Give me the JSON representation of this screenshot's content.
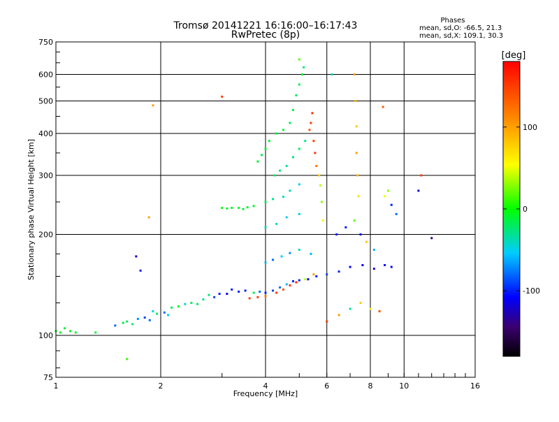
{
  "figure": {
    "title": "Tromsø 20141221 16:16:00–16:17:43",
    "subtitle": "RwPretec (8p)",
    "stats": {
      "heading": "Phases",
      "line_o": "mean, sd,O: -66.5, 21.3",
      "line_x": "mean, sd,X: 109.1, 30.3"
    },
    "colorbar": {
      "label": "[deg]",
      "ticks": [
        {
          "value": 100,
          "label": "100"
        },
        {
          "value": 0,
          "label": "0"
        },
        {
          "value": -100,
          "label": "-100"
        }
      ],
      "min": -180,
      "max": 180
    }
  },
  "chart_data": {
    "type": "scatter",
    "title": "Tromsø 20141221 16:16:00–16:17:43",
    "subtitle": "RwPretec (8p)",
    "xlabel": "Frequency [MHz]",
    "ylabel": "Stationary phase Virtual Height [km]",
    "x_scale": "log",
    "y_scale": "log",
    "xlim": [
      1,
      16
    ],
    "ylim": [
      75,
      750
    ],
    "xticks": [
      {
        "value": 1,
        "label": "1"
      },
      {
        "value": 2,
        "label": "2"
      },
      {
        "value": 4,
        "label": "4"
      },
      {
        "value": 6,
        "label": "6"
      },
      {
        "value": 8,
        "label": "8"
      },
      {
        "value": 10,
        "label": "10"
      },
      {
        "value": 16,
        "label": "16"
      }
    ],
    "yticks": [
      {
        "value": 75,
        "label": "75"
      },
      {
        "value": 100,
        "label": "100"
      },
      {
        "value": 200,
        "label": "200"
      },
      {
        "value": 300,
        "label": "300"
      },
      {
        "value": 400,
        "label": "400"
      },
      {
        "value": 500,
        "label": "500"
      },
      {
        "value": 600,
        "label": "600"
      },
      {
        "value": 750,
        "label": "750"
      }
    ],
    "grid": true,
    "colorbar": {
      "label": "[deg]",
      "range": [
        -180,
        180
      ]
    },
    "series": [
      {
        "points": [
          [
            1.0,
            103,
            -10
          ],
          [
            1.03,
            102,
            -10
          ],
          [
            1.06,
            105,
            -10
          ],
          [
            1.1,
            103,
            -10
          ],
          [
            1.14,
            102,
            -10
          ],
          [
            1.3,
            102,
            -10
          ],
          [
            1.48,
            107,
            -80
          ],
          [
            1.56,
            109,
            -15
          ],
          [
            1.6,
            110,
            -20
          ],
          [
            1.66,
            108,
            -20
          ],
          [
            1.72,
            112,
            -70
          ],
          [
            1.8,
            113,
            -90
          ],
          [
            1.86,
            111,
            -80
          ],
          [
            1.9,
            118,
            -50
          ],
          [
            1.95,
            116,
            -20
          ],
          [
            2.05,
            117,
            -80
          ],
          [
            2.1,
            115,
            -50
          ],
          [
            2.15,
            121,
            -20
          ],
          [
            2.25,
            122,
            -10
          ],
          [
            2.35,
            124,
            -40
          ],
          [
            2.45,
            125,
            -20
          ],
          [
            2.55,
            124,
            -20
          ],
          [
            2.65,
            128,
            -30
          ],
          [
            2.75,
            132,
            -25
          ],
          [
            2.85,
            130,
            -90
          ],
          [
            2.95,
            133,
            -100
          ],
          [
            3.1,
            133,
            -110
          ],
          [
            3.2,
            137,
            -100
          ],
          [
            3.35,
            135,
            -100
          ],
          [
            3.5,
            136,
            -100
          ],
          [
            3.7,
            134,
            -20
          ],
          [
            3.85,
            135,
            -80
          ],
          [
            4.0,
            134,
            -100
          ],
          [
            4.2,
            136,
            -90
          ],
          [
            4.4,
            139,
            -80
          ],
          [
            4.6,
            142,
            -60
          ],
          [
            4.8,
            145,
            -100
          ],
          [
            5.0,
            146,
            -100
          ],
          [
            5.3,
            147,
            -110
          ],
          [
            5.6,
            150,
            -100
          ],
          [
            6.0,
            152,
            -90
          ],
          [
            6.5,
            155,
            -100
          ],
          [
            7.0,
            160,
            -110
          ],
          [
            7.6,
            162,
            -110
          ],
          [
            8.2,
            158,
            -120
          ],
          [
            8.8,
            162,
            -110
          ],
          [
            9.2,
            160,
            -110
          ],
          [
            3.6,
            129,
            150
          ],
          [
            3.8,
            130,
            150
          ],
          [
            4.0,
            131,
            120
          ],
          [
            4.3,
            134,
            150
          ],
          [
            4.5,
            137,
            140
          ],
          [
            4.7,
            141,
            150
          ],
          [
            4.9,
            144,
            160
          ],
          [
            5.2,
            147,
            40
          ],
          [
            5.5,
            152,
            100
          ],
          [
            3.0,
            240,
            0
          ],
          [
            3.1,
            239,
            -10
          ],
          [
            3.2,
            240,
            -10
          ],
          [
            3.35,
            240,
            -10
          ],
          [
            3.45,
            238,
            -10
          ],
          [
            3.55,
            241,
            -10
          ],
          [
            3.7,
            243,
            -10
          ],
          [
            4.0,
            165,
            -60
          ],
          [
            4.2,
            168,
            -80
          ],
          [
            4.45,
            172,
            -50
          ],
          [
            4.7,
            176,
            -70
          ],
          [
            5.0,
            180,
            -40
          ],
          [
            5.4,
            175,
            -60
          ],
          [
            4.0,
            250,
            -20
          ],
          [
            4.2,
            255,
            -30
          ],
          [
            4.5,
            259,
            -40
          ],
          [
            4.7,
            270,
            -40
          ],
          [
            5.0,
            282,
            -50
          ],
          [
            4.0,
            210,
            -40
          ],
          [
            4.3,
            215,
            -40
          ],
          [
            4.6,
            225,
            -50
          ],
          [
            5.0,
            230,
            -50
          ],
          [
            3.8,
            330,
            -10
          ],
          [
            3.9,
            345,
            -20
          ],
          [
            4.0,
            360,
            -10
          ],
          [
            4.1,
            380,
            -10
          ],
          [
            4.3,
            400,
            -15
          ],
          [
            4.5,
            410,
            -10
          ],
          [
            4.7,
            430,
            -20
          ],
          [
            4.8,
            470,
            -15
          ],
          [
            4.9,
            520,
            -20
          ],
          [
            5.0,
            560,
            -15
          ],
          [
            5.1,
            600,
            -10
          ],
          [
            5.15,
            630,
            -20
          ],
          [
            4.25,
            300,
            -20
          ],
          [
            4.4,
            310,
            -25
          ],
          [
            4.6,
            320,
            -30
          ],
          [
            4.8,
            340,
            -25
          ],
          [
            5.0,
            360,
            -20
          ],
          [
            5.2,
            380,
            -30
          ],
          [
            5.35,
            410,
            140
          ],
          [
            5.4,
            430,
            150
          ],
          [
            5.45,
            460,
            160
          ],
          [
            5.5,
            380,
            150
          ],
          [
            5.55,
            350,
            155
          ],
          [
            5.6,
            320,
            120
          ],
          [
            5.7,
            300,
            80
          ],
          [
            5.75,
            280,
            40
          ],
          [
            5.8,
            250,
            30
          ],
          [
            5.85,
            220,
            60
          ],
          [
            6.4,
            200,
            -100
          ],
          [
            6.8,
            210,
            -100
          ],
          [
            7.2,
            220,
            20
          ],
          [
            7.5,
            200,
            -110
          ],
          [
            7.8,
            190,
            80
          ],
          [
            8.2,
            180,
            -60
          ],
          [
            7.2,
            600,
            100
          ],
          [
            7.25,
            500,
            90
          ],
          [
            7.3,
            420,
            80
          ],
          [
            7.3,
            350,
            100
          ],
          [
            7.35,
            300,
            90
          ],
          [
            7.4,
            260,
            70
          ],
          [
            8.8,
            260,
            50
          ],
          [
            9.0,
            270,
            30
          ],
          [
            9.2,
            245,
            -100
          ],
          [
            9.5,
            230,
            -80
          ],
          [
            1.6,
            85,
            10
          ],
          [
            1.7,
            172,
            -120
          ],
          [
            1.75,
            156,
            -100
          ],
          [
            1.85,
            225,
            100
          ],
          [
            1.9,
            485,
            100
          ],
          [
            3.0,
            515,
            150
          ],
          [
            8.7,
            480,
            130
          ],
          [
            11.0,
            270,
            -120
          ],
          [
            11.2,
            300,
            150
          ],
          [
            12.0,
            195,
            -140
          ],
          [
            5.0,
            665,
            20
          ],
          [
            6.2,
            600,
            -40
          ],
          [
            6.0,
            110,
            150
          ],
          [
            6.5,
            115,
            100
          ],
          [
            7.0,
            120,
            -30
          ],
          [
            7.5,
            125,
            80
          ],
          [
            8.0,
            120,
            60
          ],
          [
            8.5,
            118,
            140
          ]
        ]
      }
    ]
  }
}
